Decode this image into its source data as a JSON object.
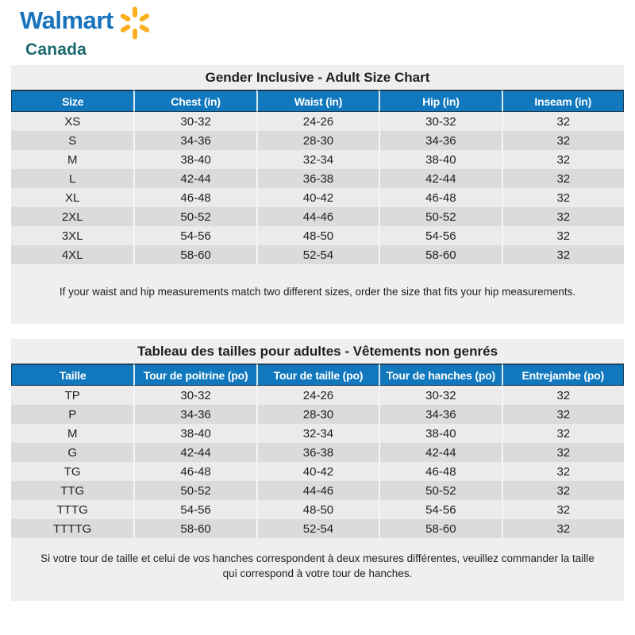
{
  "logo": {
    "brand": "Walmart",
    "region": "Canada"
  },
  "colors": {
    "brand_blue": "#1873bd",
    "brand_teal": "#1a6a6e",
    "spark_yellow": "#fbaf1d",
    "table_header_blue": "#1178bd",
    "row_light": "#ecebec",
    "row_dark": "#dcdbdc",
    "panel_background": "#f0eff0"
  },
  "tables": [
    {
      "title": "Gender Inclusive - Adult Size Chart",
      "columns": [
        "Size",
        "Chest (in)",
        "Waist (in)",
        "Hip (in)",
        "Inseam (in)"
      ],
      "rows": [
        [
          "XS",
          "30-32",
          "24-26",
          "30-32",
          "32"
        ],
        [
          "S",
          "34-36",
          "28-30",
          "34-36",
          "32"
        ],
        [
          "M",
          "38-40",
          "32-34",
          "38-40",
          "32"
        ],
        [
          "L",
          "42-44",
          "36-38",
          "42-44",
          "32"
        ],
        [
          "XL",
          "46-48",
          "40-42",
          "46-48",
          "32"
        ],
        [
          "2XL",
          "50-52",
          "44-46",
          "50-52",
          "32"
        ],
        [
          "3XL",
          "54-56",
          "48-50",
          "54-56",
          "32"
        ],
        [
          "4XL",
          "58-60",
          "52-54",
          "58-60",
          "32"
        ]
      ],
      "note": "If your waist and hip measurements match two different sizes, order the size that fits your hip measurements."
    },
    {
      "title": "Tableau des tailles pour adultes - Vêtements non genrés",
      "columns": [
        "Taille",
        "Tour de poitrine (po)",
        "Tour de taille (po)",
        "Tour de hanches (po)",
        "Entrejambe (po)"
      ],
      "rows": [
        [
          "TP",
          "30-32",
          "24-26",
          "30-32",
          "32"
        ],
        [
          "P",
          "34-36",
          "28-30",
          "34-36",
          "32"
        ],
        [
          "M",
          "38-40",
          "32-34",
          "38-40",
          "32"
        ],
        [
          "G",
          "42-44",
          "36-38",
          "42-44",
          "32"
        ],
        [
          "TG",
          "46-48",
          "40-42",
          "46-48",
          "32"
        ],
        [
          "TTG",
          "50-52",
          "44-46",
          "50-52",
          "32"
        ],
        [
          "TTTG",
          "54-56",
          "48-50",
          "54-56",
          "32"
        ],
        [
          "TTTTG",
          "58-60",
          "52-54",
          "58-60",
          "32"
        ]
      ],
      "note": "Si votre tour de taille et celui de vos hanches correspondent à deux mesures différentes, veuillez commander la taille qui correspond à votre tour de hanches."
    }
  ]
}
